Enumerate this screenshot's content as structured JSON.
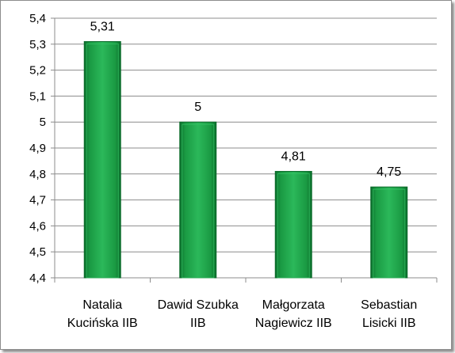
{
  "chart_data": {
    "type": "bar",
    "categories": [
      [
        "Natalia",
        "Kucińska IIB"
      ],
      [
        "Dawid Szubka",
        "IIB"
      ],
      [
        "Małgorzata",
        "Nagiewicz IIB"
      ],
      [
        "Sebastian",
        "Lisicki IIB"
      ]
    ],
    "values": [
      5.31,
      5,
      4.81,
      4.75
    ],
    "value_labels": [
      "5,31",
      "5",
      "4,81",
      "4,75"
    ],
    "ylim": [
      4.4,
      5.4
    ],
    "yticks": [
      "4,4",
      "4,5",
      "4,6",
      "4,7",
      "4,8",
      "4,9",
      "5",
      "5,1",
      "5,2",
      "5,3",
      "5,4"
    ],
    "grid": true,
    "legend": "none",
    "title": "",
    "xlabel": "",
    "ylabel": "",
    "colors": {
      "bar": "#1fa64a",
      "bar_dark": "#0b6b2a",
      "bar_light": "#35c565",
      "grid": "#8c8c8c"
    }
  }
}
